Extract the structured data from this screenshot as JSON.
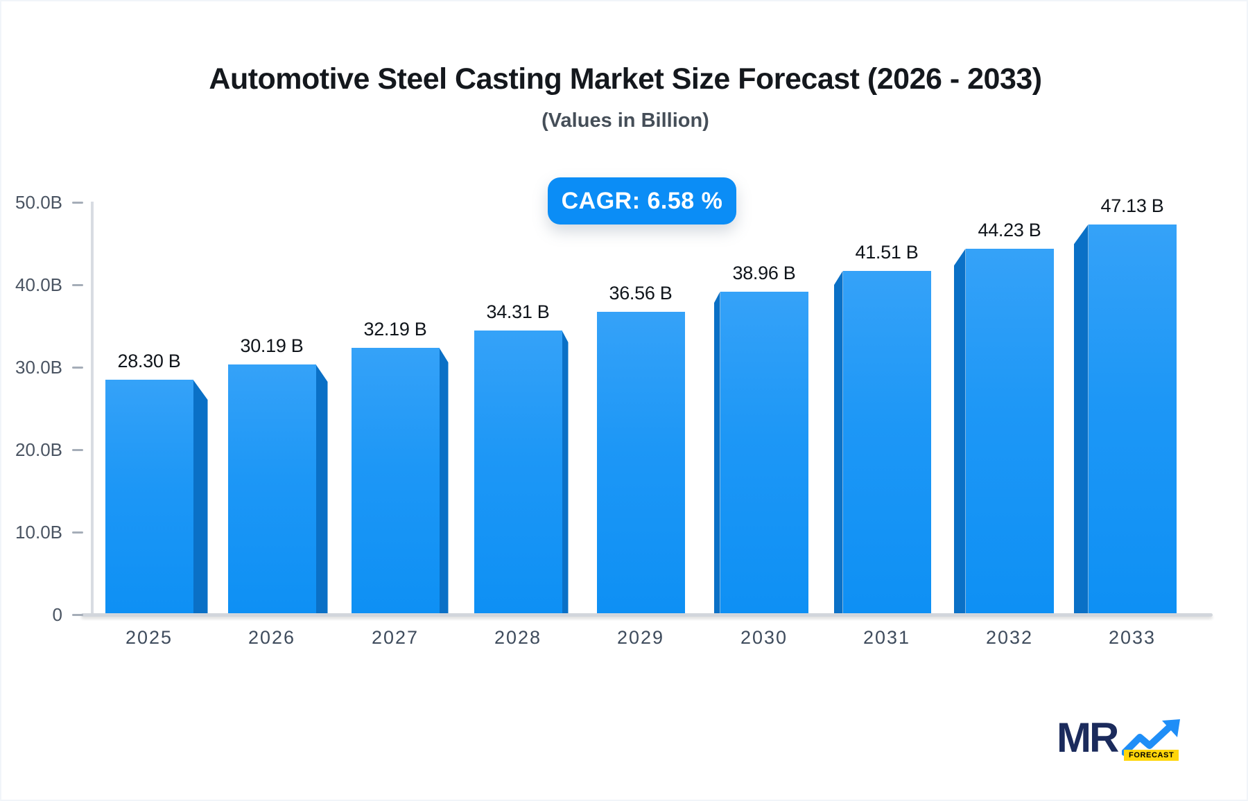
{
  "header": {
    "title": "Automotive Steel Casting Market Size Forecast (2026 - 2033)",
    "subtitle": "(Values in Billion)",
    "cagr_badge": "CAGR: 6.58 %"
  },
  "chart_data": {
    "type": "bar",
    "title": "Automotive Steel Casting Market Size Forecast (2026 - 2033)",
    "subtitle": "(Values in Billion)",
    "categories": [
      "2025",
      "2026",
      "2027",
      "2028",
      "2029",
      "2030",
      "2031",
      "2032",
      "2033"
    ],
    "values": [
      28.3,
      30.19,
      32.19,
      34.31,
      36.56,
      38.96,
      41.51,
      44.23,
      47.13
    ],
    "data_labels": [
      "28.30 B",
      "30.19 B",
      "32.19 B",
      "34.31 B",
      "36.56 B",
      "38.96 B",
      "41.51 B",
      "44.23 B",
      "47.13 B"
    ],
    "xlabel": "",
    "ylabel": "",
    "ylim": [
      0,
      50
    ],
    "yticks": [
      0,
      10,
      20,
      30,
      40,
      50
    ],
    "ytick_labels": [
      "0",
      "10.0B",
      "20.0B",
      "30.0B",
      "40.0B",
      "50.0B"
    ],
    "grid": false,
    "legend": "none",
    "style": "3d beveled bars, perspective side faces pointing outward from center bar (2029)",
    "colors": {
      "bar_face_top": "#35a2f8",
      "bar_face_bottom": "#0e90f4",
      "bar_side": "#0a70c6",
      "axis_line": "#d2d6dc",
      "tick_text": "#4a5462",
      "badge_background": "#0b8df6",
      "badge_text": "#ffffff"
    }
  },
  "logo": {
    "mr_text": "MR",
    "forecast_text": "FORECAST",
    "colors": {
      "mr": "#1b2b5c",
      "arrow": "#1f8ef7",
      "forecast_bg": "#ffd60b"
    }
  }
}
